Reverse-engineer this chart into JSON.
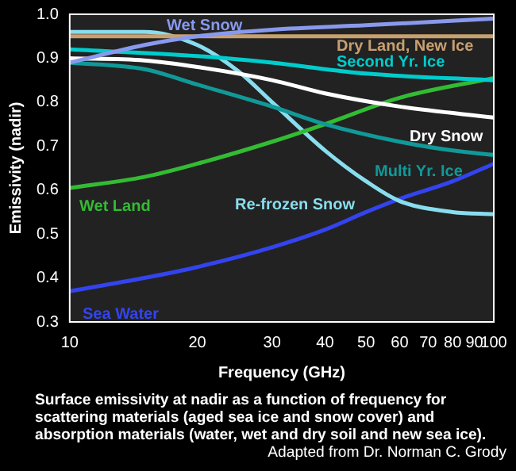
{
  "chart_data": {
    "type": "line",
    "xlabel": "Frequency (GHz)",
    "ylabel": "Emissivity (nadir)",
    "log": "x",
    "xlim": [
      10,
      100
    ],
    "xticks": [
      10,
      20,
      30,
      40,
      50,
      60,
      70,
      80,
      90,
      100
    ],
    "ylim": [
      0.3,
      1.0
    ],
    "yticks": [
      {
        "value": 0.3,
        "label": "0.3"
      },
      0.4,
      0.5,
      0.6,
      0.7,
      0.8,
      0.9,
      {
        "value": 1.0,
        "label": "1.0"
      }
    ],
    "grid": false,
    "marker": "none",
    "line_style": "solid",
    "series": [
      {
        "name": "Wet Snow",
        "color": "#8899ee",
        "x": [
          10,
          15,
          20,
          30,
          50,
          100
        ],
        "values": [
          0.89,
          0.93,
          0.95,
          0.965,
          0.975,
          0.99
        ]
      },
      {
        "name": "Dry Land, New Ice",
        "color": "#c8a070",
        "x": [
          10,
          20,
          50,
          100
        ],
        "values": [
          0.95,
          0.95,
          0.95,
          0.95
        ]
      },
      {
        "name": "Second Yr. Ice",
        "color": "#00cccc",
        "x": [
          10,
          20,
          30,
          50,
          100
        ],
        "values": [
          0.92,
          0.905,
          0.89,
          0.865,
          0.85
        ]
      },
      {
        "name": "Dry Snow",
        "color": "#ffffff",
        "x": [
          10,
          15,
          20,
          30,
          40,
          60,
          100
        ],
        "values": [
          0.9,
          0.895,
          0.88,
          0.85,
          0.82,
          0.79,
          0.765
        ]
      },
      {
        "name": "Multi Yr. Ice",
        "color": "#119999",
        "x": [
          10,
          15,
          20,
          30,
          40,
          60,
          80,
          100
        ],
        "values": [
          0.89,
          0.875,
          0.84,
          0.79,
          0.75,
          0.71,
          0.69,
          0.68
        ]
      },
      {
        "name": "Wet Land",
        "color": "#33bb33",
        "x": [
          10,
          15,
          20,
          30,
          40,
          60,
          100
        ],
        "values": [
          0.605,
          0.63,
          0.66,
          0.71,
          0.75,
          0.81,
          0.855
        ]
      },
      {
        "name": "Re-frozen Snow",
        "color": "#88ddee",
        "x": [
          10,
          15,
          20,
          25,
          30,
          40,
          50,
          60,
          80,
          100
        ],
        "values": [
          0.96,
          0.96,
          0.93,
          0.87,
          0.8,
          0.69,
          0.62,
          0.575,
          0.55,
          0.545
        ]
      },
      {
        "name": "Sea Water",
        "color": "#3344ee",
        "x": [
          10,
          15,
          20,
          30,
          40,
          50,
          60,
          80,
          100
        ],
        "values": [
          0.37,
          0.4,
          0.425,
          0.47,
          0.51,
          0.55,
          0.58,
          0.62,
          0.66
        ]
      }
    ],
    "annotations": [
      "Surface emissivity at nadir as a function of frequency for scattering materials (aged sea ice and snow cover) and absorption materials (water, wet and dry soil and new sea ice).",
      "Adapted from Dr. Norman C. Grody"
    ]
  }
}
